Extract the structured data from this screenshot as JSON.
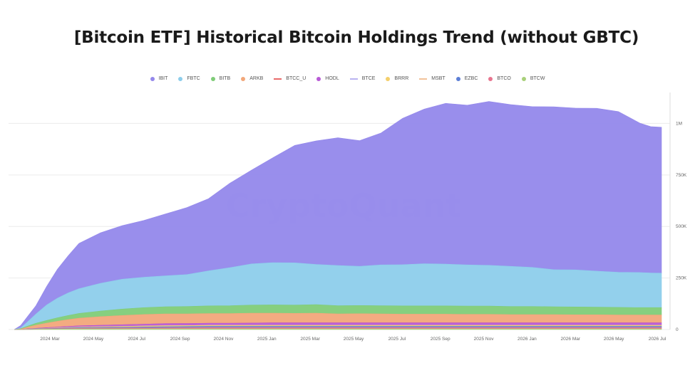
{
  "chart_data": {
    "type": "area",
    "title": "[Bitcoin ETF] Historical Bitcoin Holdings Trend (without GBTC)",
    "watermark": "CryptoQuant",
    "stacked": true,
    "ylim": [
      0,
      1150000
    ],
    "y_ticks": [
      0,
      250000,
      500000,
      750000,
      1000000
    ],
    "y_tick_labels": [
      "0",
      "250K",
      "500K",
      "750K",
      "1M"
    ],
    "x_tick_labels": [
      "2024 Mar",
      "2024 May",
      "2024 Jul",
      "2024 Sep",
      "2024 Nov",
      "2025 Jan",
      "2025 Mar",
      "2025 May",
      "2025 Jul",
      "2025 Sep",
      "2025 Nov",
      "2026 Jan",
      "2026 Mar",
      "2026 May",
      "2026 Jul"
    ],
    "x_range": [
      0,
      30
    ],
    "legend_placement": "top-center",
    "grid": "horizontal",
    "x": [
      0,
      0.3,
      0.6,
      1,
      1.5,
      2,
      2.5,
      3,
      4,
      5,
      6,
      7,
      8,
      9,
      10,
      11,
      12,
      13,
      14,
      15,
      16,
      17,
      18,
      19,
      20,
      21,
      22,
      23,
      24,
      25,
      26,
      27,
      28,
      29,
      29.5,
      30
    ],
    "series": [
      {
        "name": "BTCW",
        "color": "#a8d07a",
        "legend_shape": "dot",
        "values": [
          0,
          0,
          500,
          1000,
          1500,
          2000,
          2500,
          3000,
          3000,
          3200,
          3500,
          3500,
          3500,
          3500,
          3500,
          3500,
          3500,
          3500,
          3500,
          3500,
          3500,
          3500,
          3500,
          3500,
          3500,
          3500,
          3500,
          3500,
          3500,
          3500,
          3500,
          3500,
          3500,
          3500,
          3500,
          3500
        ]
      },
      {
        "name": "BTCO",
        "color": "#e8758f",
        "legend_shape": "dot",
        "values": [
          0,
          0,
          500,
          1000,
          1500,
          2000,
          2500,
          3000,
          3500,
          4000,
          4500,
          5000,
          5500,
          6000,
          6000,
          6000,
          6000,
          6000,
          6000,
          6000,
          6000,
          6000,
          6000,
          6000,
          6000,
          6000,
          6000,
          6000,
          6000,
          6000,
          6000,
          6000,
          6000,
          6000,
          6000,
          6000
        ]
      },
      {
        "name": "EZBC",
        "color": "#5d7fd6",
        "legend_shape": "dot",
        "values": [
          0,
          0,
          500,
          1000,
          1500,
          2000,
          2500,
          3000,
          3500,
          4000,
          4500,
          5000,
          5500,
          6000,
          6000,
          6000,
          6000,
          6000,
          6000,
          6000,
          6000,
          6000,
          6000,
          6000,
          6000,
          6000,
          6000,
          6000,
          6000,
          6000,
          6000,
          6000,
          6000,
          6000,
          6000,
          6000
        ]
      },
      {
        "name": "MSBT",
        "color": "#f2c29a",
        "legend_shape": "line",
        "values": [
          0,
          0,
          0,
          0,
          0,
          0,
          0,
          0,
          0,
          0,
          0,
          0,
          0,
          0,
          0,
          0,
          0,
          0,
          0,
          0,
          0,
          0,
          0,
          0,
          0,
          0,
          0,
          0,
          0,
          0,
          0,
          0,
          0,
          0,
          0,
          0
        ]
      },
      {
        "name": "BRRR",
        "color": "#f4cf6b",
        "legend_shape": "dot",
        "values": [
          0,
          0,
          500,
          1000,
          1500,
          2000,
          2500,
          3000,
          3500,
          4000,
          4500,
          5000,
          5000,
          5000,
          5000,
          5000,
          5000,
          5000,
          5000,
          5000,
          5000,
          5000,
          5000,
          5000,
          5000,
          5000,
          5000,
          5000,
          5000,
          5000,
          5000,
          5000,
          5000,
          5000,
          5000,
          5000
        ]
      },
      {
        "name": "BTCE",
        "color": "#b9b3f0",
        "legend_shape": "line",
        "values": [
          0,
          0,
          0,
          0,
          0,
          0,
          0,
          0,
          0,
          0,
          0,
          0,
          0,
          0,
          0,
          0,
          0,
          0,
          0,
          0,
          0,
          0,
          0,
          0,
          0,
          0,
          0,
          0,
          0,
          0,
          0,
          0,
          0,
          0,
          0,
          0
        ]
      },
      {
        "name": "HODL",
        "color": "#b85ad6",
        "legend_shape": "dot",
        "values": [
          0,
          0,
          1000,
          2000,
          3000,
          4000,
          5000,
          6000,
          7000,
          8000,
          9000,
          10000,
          10000,
          10000,
          10000,
          11000,
          12000,
          12000,
          12000,
          12000,
          12000,
          12000,
          12000,
          12000,
          12000,
          12000,
          12000,
          12000,
          12000,
          12000,
          12000,
          12000,
          12000,
          12000,
          12000,
          12000
        ]
      },
      {
        "name": "BTCC_U",
        "color": "#e86a6a",
        "legend_shape": "line",
        "values": [
          0,
          0,
          0,
          0,
          0,
          0,
          0,
          0,
          0,
          0,
          0,
          0,
          0,
          0,
          0,
          0,
          0,
          0,
          0,
          0,
          0,
          0,
          0,
          0,
          0,
          0,
          0,
          0,
          0,
          0,
          0,
          0,
          0,
          0,
          0,
          0
        ]
      },
      {
        "name": "ARKB",
        "color": "#f2a77a",
        "legend_shape": "dot",
        "values": [
          0,
          2000,
          8000,
          15000,
          22000,
          28000,
          33000,
          37000,
          42000,
          45000,
          47000,
          47000,
          46000,
          47000,
          47000,
          48000,
          47000,
          46000,
          47000,
          43000,
          44000,
          43000,
          42000,
          42000,
          42000,
          41000,
          41000,
          40000,
          40000,
          40000,
          39000,
          39000,
          38000,
          38000,
          38000,
          38000
        ]
      },
      {
        "name": "BITB",
        "color": "#7fcc78",
        "legend_shape": "dot",
        "values": [
          0,
          2000,
          5000,
          9000,
          13000,
          17000,
          20000,
          23000,
          27000,
          31000,
          33000,
          35000,
          36000,
          37000,
          38000,
          39000,
          40000,
          40000,
          41000,
          40000,
          40000,
          40000,
          40000,
          40000,
          40000,
          40000,
          40000,
          39000,
          39000,
          38000,
          38000,
          37000,
          37000,
          36000,
          36000,
          36000
        ]
      },
      {
        "name": "FBTC",
        "color": "#8dcdeb",
        "legend_shape": "dot",
        "values": [
          0,
          4000,
          20000,
          45000,
          75000,
          95000,
          110000,
          120000,
          135000,
          145000,
          148000,
          150000,
          155000,
          170000,
          185000,
          200000,
          205000,
          205000,
          195000,
          195000,
          190000,
          198000,
          200000,
          205000,
          203000,
          200000,
          198000,
          195000,
          190000,
          180000,
          180000,
          175000,
          170000,
          170000,
          168000,
          167000
        ]
      },
      {
        "name": "IBIT",
        "color": "#9488eb",
        "legend_shape": "dot",
        "values": [
          0,
          12000,
          25000,
          40000,
          90000,
          140000,
          180000,
          220000,
          245000,
          260000,
          275000,
          300000,
          325000,
          350000,
          410000,
          455000,
          510000,
          570000,
          600000,
          620000,
          610000,
          640000,
          710000,
          750000,
          780000,
          775000,
          795000,
          785000,
          780000,
          790000,
          785000,
          790000,
          780000,
          725000,
          710000,
          708000
        ]
      }
    ]
  },
  "legend_order": [
    "IBIT",
    "FBTC",
    "BITB",
    "ARKB",
    "BTCC_U",
    "HODL",
    "BTCE",
    "BRRR",
    "MSBT",
    "EZBC",
    "BTCO",
    "BTCW"
  ]
}
